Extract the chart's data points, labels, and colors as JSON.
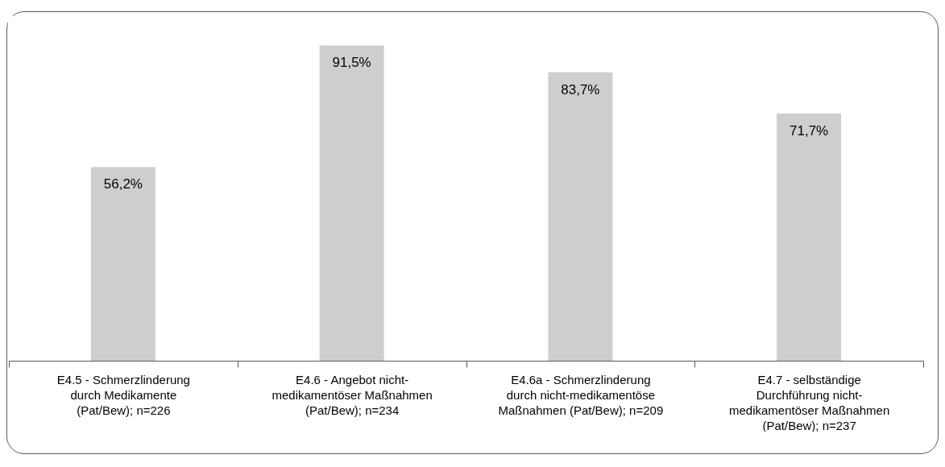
{
  "chart_data": {
    "type": "bar",
    "categories": [
      "E4.5 - Schmerzlinderung durch Medikamente (Pat/Bew); n=226",
      "E4.6 - Angebot nicht-medikamentöser Maßnahmen (Pat/Bew); n=234",
      "E4.6a - Schmerzlinderung durch nicht-medikamentöse Maßnahmen (Pat/Bew); n=209",
      "E4.7 - selbständige Durchführung nicht-medikamentöser Maßnahmen (Pat/Bew); n=237"
    ],
    "values": [
      56.2,
      91.5,
      83.7,
      71.7
    ],
    "value_labels": [
      "56,2%",
      "91,5%",
      "83,7%",
      "71,7%"
    ],
    "color": "#d0cecd",
    "ylim": [
      0,
      100
    ],
    "grid": false
  }
}
